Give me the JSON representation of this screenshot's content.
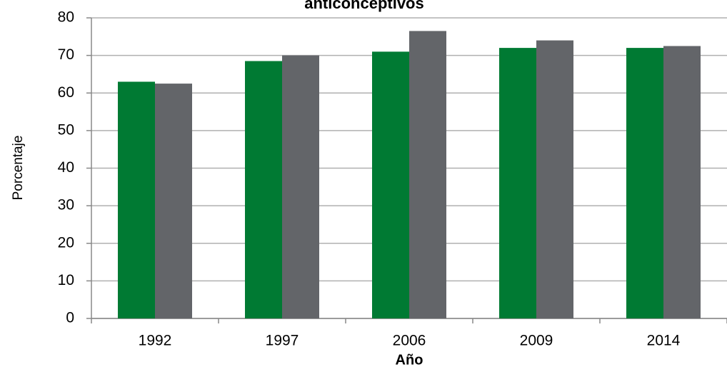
{
  "chart_data": {
    "type": "bar",
    "title": "anticonceptivos",
    "x_label": "Año",
    "y_label": "Porcentaje",
    "categories": [
      "1992",
      "1997",
      "2006",
      "2009",
      "2014"
    ],
    "series": [
      {
        "color": "#007a33",
        "values": [
          63,
          68.5,
          71,
          72,
          72
        ]
      },
      {
        "color": "#636569",
        "values": [
          62.5,
          70,
          76.5,
          74,
          72.5
        ]
      }
    ],
    "ylim": [
      0,
      80
    ],
    "yticks": [
      0,
      10,
      20,
      30,
      40,
      50,
      60,
      70,
      80
    ],
    "grid": true
  }
}
